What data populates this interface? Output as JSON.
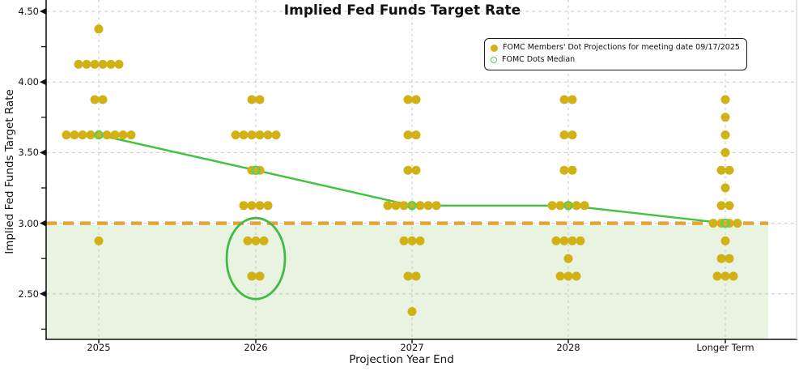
{
  "title": "Implied Fed Funds Target Rate",
  "axes": {
    "x": {
      "label": "Projection Year End",
      "categories": [
        "2025",
        "2026",
        "2027",
        "2028",
        "Longer Term"
      ]
    },
    "y": {
      "label": "Implied Fed Funds Target Rate",
      "tick_labels": [
        "4.50",
        "4.00",
        "3.50",
        "3.00",
        "2.50"
      ],
      "tick_values": [
        4.5,
        4.0,
        3.5,
        3.0,
        2.5
      ],
      "minor_tick_values": [
        4.25,
        3.75,
        3.25,
        2.75,
        2.25
      ]
    }
  },
  "legend": {
    "items": [
      {
        "label": "FOMC Members' Dot Projections for meeting date 09/17/2025",
        "marker": "filled-dot"
      },
      {
        "label": "FOMC Dots Median",
        "marker": "open-circle"
      }
    ]
  },
  "chart_data": {
    "type": "scatter",
    "title": "Implied Fed Funds Target Rate",
    "xlabel": "Projection Year End",
    "ylabel": "Implied Fed Funds Target Rate",
    "categories": [
      "2025",
      "2026",
      "2027",
      "2028",
      "Longer Term"
    ],
    "ylim": [
      2.18,
      4.58
    ],
    "grid": true,
    "legend_position": "upper right",
    "dot_groups": [
      {
        "category": "2025",
        "dots": [
          {
            "rate": 4.375,
            "count": 1
          },
          {
            "rate": 4.125,
            "count": 6
          },
          {
            "rate": 3.875,
            "count": 2
          },
          {
            "rate": 3.625,
            "count": 9
          },
          {
            "rate": 2.875,
            "count": 1
          }
        ]
      },
      {
        "category": "2026",
        "dots": [
          {
            "rate": 3.875,
            "count": 2
          },
          {
            "rate": 3.625,
            "count": 6
          },
          {
            "rate": 3.375,
            "count": 2
          },
          {
            "rate": 3.125,
            "count": 4
          },
          {
            "rate": 2.875,
            "count": 3
          },
          {
            "rate": 2.625,
            "count": 2
          }
        ]
      },
      {
        "category": "2027",
        "dots": [
          {
            "rate": 3.875,
            "count": 2
          },
          {
            "rate": 3.625,
            "count": 2
          },
          {
            "rate": 3.375,
            "count": 2
          },
          {
            "rate": 3.125,
            "count": 7
          },
          {
            "rate": 2.875,
            "count": 3
          },
          {
            "rate": 2.625,
            "count": 2
          },
          {
            "rate": 2.375,
            "count": 1
          }
        ]
      },
      {
        "category": "2028",
        "dots": [
          {
            "rate": 3.875,
            "count": 2
          },
          {
            "rate": 3.625,
            "count": 2
          },
          {
            "rate": 3.375,
            "count": 2
          },
          {
            "rate": 3.125,
            "count": 5
          },
          {
            "rate": 2.875,
            "count": 4
          },
          {
            "rate": 2.75,
            "count": 1
          },
          {
            "rate": 2.625,
            "count": 3
          }
        ]
      },
      {
        "category": "Longer Term",
        "dots": [
          {
            "rate": 3.875,
            "count": 1
          },
          {
            "rate": 3.75,
            "count": 1
          },
          {
            "rate": 3.625,
            "count": 1
          },
          {
            "rate": 3.5,
            "count": 1
          },
          {
            "rate": 3.375,
            "count": 2
          },
          {
            "rate": 3.25,
            "count": 1
          },
          {
            "rate": 3.125,
            "count": 2
          },
          {
            "rate": 3.0,
            "count": 4
          },
          {
            "rate": 2.875,
            "count": 1
          },
          {
            "rate": 2.75,
            "count": 2
          },
          {
            "rate": 2.625,
            "count": 3
          }
        ]
      }
    ],
    "median_series": {
      "name": "FOMC Dots Median",
      "values": [
        3.625,
        3.375,
        3.125,
        3.125,
        3.0
      ]
    },
    "reference_line": {
      "value": 3.0,
      "style": "dashed"
    },
    "shaded_region": {
      "below": 3.0
    },
    "annotation": {
      "shape": "ellipse",
      "category": "2026",
      "rates_circled": [
        2.875,
        2.625
      ]
    }
  },
  "colors": {
    "dot": "#d2b115",
    "median_line": "#3ec43e",
    "median_ring": "#55d155",
    "ellipse": "#46b846",
    "reference_line": "#e6a33c",
    "shaded_region": "#e8f3e2",
    "grid": "#c9c9c9",
    "axis": "#111111"
  }
}
